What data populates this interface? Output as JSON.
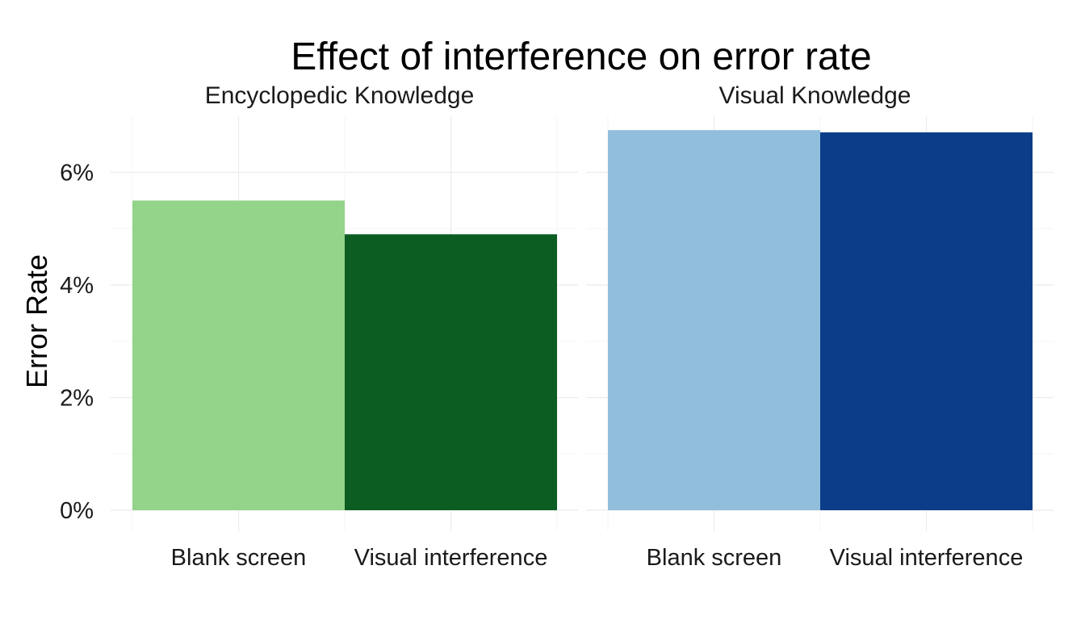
{
  "chart_data": {
    "type": "bar",
    "title": "Effect of interference on error rate",
    "ylabel": "Error Rate",
    "xlabel": "",
    "ylim": [
      0,
      7
    ],
    "y_ticks": [
      0,
      2,
      4,
      6
    ],
    "y_tick_labels": [
      "0%",
      "2%",
      "4%",
      "6%"
    ],
    "grid": true,
    "legend": "none",
    "categories": [
      "Blank screen",
      "Visual interference"
    ],
    "panels": [
      {
        "name": "Encyclopedic Knowledge",
        "values": [
          5.5,
          4.9
        ],
        "colors": [
          "#94d38a",
          "#0c5d22"
        ]
      },
      {
        "name": "Visual Knowledge",
        "values": [
          6.75,
          6.71
        ],
        "colors": [
          "#91bedb",
          "#0b3d89"
        ]
      }
    ]
  }
}
